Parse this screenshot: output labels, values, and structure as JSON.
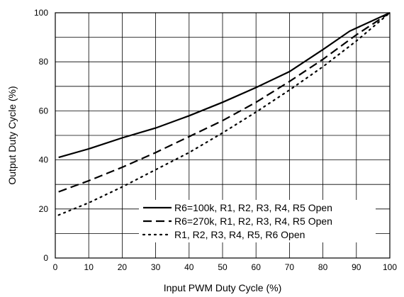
{
  "chart_data": {
    "type": "line",
    "title": "",
    "xlabel": "Input PWM Duty Cycle (%)",
    "ylabel": "Output Duty Cycle (%)",
    "xlim": [
      0,
      100
    ],
    "ylim": [
      0,
      100
    ],
    "x_ticks": [
      0,
      10,
      20,
      30,
      40,
      50,
      60,
      70,
      80,
      90,
      100
    ],
    "y_ticks": [
      0,
      20,
      40,
      60,
      80,
      100
    ],
    "x_tick_labels": [
      "0",
      "10",
      "20",
      "30",
      "40",
      "50",
      "60",
      "70",
      "80",
      "90",
      "100"
    ],
    "y_tick_labels": [
      "0",
      "20",
      "40",
      "60",
      "80",
      "100"
    ],
    "grid": true,
    "legend_position": "bottom-right",
    "series": [
      {
        "name": "R6=100k, R1, R2, R3, R4, R5 Open",
        "style": "solid",
        "color": "#000000",
        "x": [
          1,
          10,
          20,
          30,
          40,
          50,
          60,
          70,
          80,
          88,
          100
        ],
        "y": [
          41,
          44.5,
          49,
          53,
          58,
          63.5,
          69.5,
          76,
          85,
          92.5,
          100
        ]
      },
      {
        "name": "R6=270k, R1, R2, R3, R4, R5 Open",
        "style": "dashed",
        "color": "#000000",
        "x": [
          1,
          10,
          20,
          30,
          40,
          50,
          60,
          70,
          80,
          90,
          100
        ],
        "y": [
          27,
          31.5,
          37,
          43,
          49.5,
          56,
          63.5,
          72,
          81,
          91,
          100
        ]
      },
      {
        "name": "R1, R2, R3, R4, R5, R6 Open",
        "style": "dotted",
        "color": "#000000",
        "x": [
          1,
          10,
          20,
          30,
          40,
          50,
          60,
          70,
          80,
          90,
          100
        ],
        "y": [
          17.5,
          22.5,
          29,
          36,
          43,
          51,
          59.5,
          68.5,
          78,
          88.5,
          100
        ]
      }
    ]
  }
}
